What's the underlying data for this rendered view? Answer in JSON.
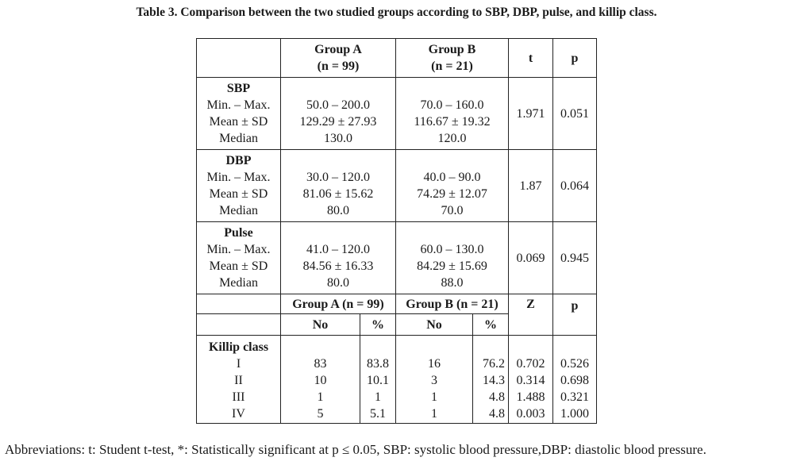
{
  "caption": "Table 3. Comparison between the two studied groups according to SBP, DBP, pulse, and killip class.",
  "header": {
    "group_a_line1": "Group A",
    "group_a_line2": "(n = 99)",
    "group_b_line1": "Group B",
    "group_b_line2": "(n = 21)",
    "t": "t",
    "p": "p"
  },
  "stat_labels": {
    "minmax": "Min. – Max.",
    "meansd": "Mean ± SD",
    "median": "Median"
  },
  "variables": [
    {
      "name": "SBP",
      "a": {
        "minmax": "50.0 – 200.0",
        "meansd": "129.29 ± 27.93",
        "median": "130.0"
      },
      "b": {
        "minmax": "70.0 – 160.0",
        "meansd": "116.67 ± 19.32",
        "median": "120.0"
      },
      "t": "1.971",
      "p": "0.051"
    },
    {
      "name": "DBP",
      "a": {
        "minmax": "30.0 – 120.0",
        "meansd": "81.06 ± 15.62",
        "median": "80.0"
      },
      "b": {
        "minmax": "40.0 – 90.0",
        "meansd": "74.29 ± 12.07",
        "median": "70.0"
      },
      "t": "1.87",
      "p": "0.064"
    },
    {
      "name": "Pulse",
      "a": {
        "minmax": "41.0 – 120.0",
        "meansd": "84.56 ± 16.33",
        "median": "80.0"
      },
      "b": {
        "minmax": "60.0 – 130.0",
        "meansd": "84.29 ± 15.69",
        "median": "88.0"
      },
      "t": "0.069",
      "p": "0.945"
    }
  ],
  "killip_header": {
    "group_a": "Group A (n = 99)",
    "group_b": "Group B (n = 21)",
    "z": "Z",
    "p": "p",
    "no": "No",
    "pct": "%"
  },
  "killip": {
    "label": "Killip class",
    "rows": [
      {
        "cls": "I",
        "a_no": "83",
        "a_pct": "83.8",
        "b_no": "16",
        "b_pct": "76.2",
        "z": "0.702",
        "p": "0.526"
      },
      {
        "cls": "II",
        "a_no": "10",
        "a_pct": "10.1",
        "b_no": "3",
        "b_pct": "14.3",
        "z": "0.314",
        "p": "0.698"
      },
      {
        "cls": "III",
        "a_no": "1",
        "a_pct": "1",
        "b_no": "1",
        "b_pct": "4.8",
        "z": "1.488",
        "p": "0.321"
      },
      {
        "cls": "IV",
        "a_no": "5",
        "a_pct": "5.1",
        "b_no": "1",
        "b_pct": "4.8",
        "z": "0.003",
        "p": "1.000"
      }
    ]
  },
  "footnote": "Abbreviations: t: Student t-test, *: Statistically significant at p ≤ 0.05, SBP: systolic blood pressure,DBP: diastolic blood pressure."
}
